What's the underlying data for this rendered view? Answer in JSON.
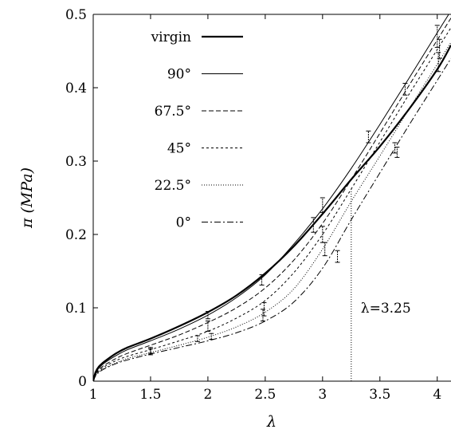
{
  "chart_data": {
    "type": "line",
    "xlabel": "λ",
    "ylabel": "π (MPa)",
    "xlim": [
      1,
      4.12
    ],
    "ylim": [
      0,
      0.5
    ],
    "x_ticks": [
      {
        "v": 1,
        "label": "1"
      },
      {
        "v": 1.5,
        "label": "1.5"
      },
      {
        "v": 2,
        "label": "2"
      },
      {
        "v": 2.5,
        "label": "2.5"
      },
      {
        "v": 3,
        "label": "3"
      },
      {
        "v": 3.5,
        "label": "3.5"
      },
      {
        "v": 4,
        "label": "4"
      }
    ],
    "y_ticks": [
      {
        "v": 0,
        "label": "0"
      },
      {
        "v": 0.1,
        "label": "0.1"
      },
      {
        "v": 0.2,
        "label": "0.2"
      },
      {
        "v": 0.3,
        "label": "0.3"
      },
      {
        "v": 0.4,
        "label": "0.4"
      },
      {
        "v": 0.5,
        "label": "0.5"
      }
    ],
    "grid": false,
    "legend_position": "top-left",
    "series": [
      {
        "name": "virgin",
        "dash": "",
        "width": 2.2,
        "x": [
          1,
          1.02,
          1.05,
          1.1,
          1.2,
          1.3,
          1.5,
          1.75,
          2,
          2.25,
          2.5,
          2.75,
          3,
          3.25,
          3.5,
          3.75,
          4,
          4.12
        ],
        "y": [
          0,
          0.012,
          0.02,
          0.027,
          0.038,
          0.046,
          0.058,
          0.075,
          0.094,
          0.117,
          0.147,
          0.184,
          0.228,
          0.275,
          0.32,
          0.37,
          0.425,
          0.458
        ],
        "error_bars": []
      },
      {
        "name": "90°",
        "dash": "",
        "width": 1,
        "x": [
          1,
          1.02,
          1.05,
          1.1,
          1.2,
          1.3,
          1.5,
          1.75,
          2,
          2.25,
          2.5,
          2.75,
          3,
          3.25,
          3.5,
          3.75,
          4,
          4.12
        ],
        "y": [
          0,
          0.01,
          0.018,
          0.025,
          0.035,
          0.043,
          0.055,
          0.071,
          0.09,
          0.114,
          0.145,
          0.187,
          0.235,
          0.29,
          0.35,
          0.412,
          0.475,
          0.505
        ],
        "error_bars": []
      },
      {
        "name": "67.5°",
        "dash": "6,3",
        "width": 1,
        "x": [
          1,
          1.02,
          1.05,
          1.1,
          1.2,
          1.3,
          1.5,
          1.75,
          2,
          2.25,
          2.5,
          2.75,
          3,
          3.25,
          3.5,
          3.75,
          4,
          4.12
        ],
        "y": [
          0,
          0.009,
          0.016,
          0.022,
          0.031,
          0.038,
          0.049,
          0.063,
          0.08,
          0.1,
          0.127,
          0.165,
          0.215,
          0.275,
          0.338,
          0.402,
          0.465,
          0.495
        ],
        "error_bars": [
          {
            "x": 2.0,
            "y": 0.09,
            "e": 0.005
          },
          {
            "x": 2.47,
            "y": 0.138,
            "e": 0.007
          },
          {
            "x": 3.0,
            "y": 0.24,
            "e": 0.01
          },
          {
            "x": 3.4,
            "y": 0.333,
            "e": 0.008
          },
          {
            "x": 3.72,
            "y": 0.398,
            "e": 0.008
          },
          {
            "x": 4.0,
            "y": 0.47,
            "e": 0.015
          }
        ]
      },
      {
        "name": "45°",
        "dash": "3,3",
        "width": 1,
        "x": [
          1,
          1.02,
          1.05,
          1.1,
          1.2,
          1.3,
          1.5,
          1.75,
          2,
          2.25,
          2.5,
          2.75,
          3,
          3.25,
          3.5,
          3.75,
          4,
          4.12
        ],
        "y": [
          0,
          0.008,
          0.014,
          0.02,
          0.028,
          0.034,
          0.043,
          0.055,
          0.068,
          0.086,
          0.11,
          0.148,
          0.2,
          0.262,
          0.326,
          0.39,
          0.452,
          0.482
        ],
        "error_bars": [
          {
            "x": 2.0,
            "y": 0.075,
            "e": 0.007
          },
          {
            "x": 2.49,
            "y": 0.098,
            "e": 0.009
          },
          {
            "x": 2.92,
            "y": 0.213,
            "e": 0.01
          },
          {
            "x": 3.0,
            "y": 0.2,
            "e": 0.011
          },
          {
            "x": 4.02,
            "y": 0.453,
            "e": 0.013
          }
        ]
      },
      {
        "name": "22.5°",
        "dash": "1,2",
        "width": 1,
        "x": [
          1,
          1.02,
          1.05,
          1.1,
          1.2,
          1.3,
          1.5,
          1.75,
          2,
          2.25,
          2.5,
          2.75,
          3,
          3.25,
          3.5,
          3.75,
          4,
          4.12
        ],
        "y": [
          0,
          0.008,
          0.013,
          0.018,
          0.025,
          0.031,
          0.039,
          0.049,
          0.06,
          0.074,
          0.094,
          0.126,
          0.18,
          0.245,
          0.307,
          0.37,
          0.432,
          0.462
        ],
        "error_bars": [
          {
            "x": 1.5,
            "y": 0.042,
            "e": 0.004
          },
          {
            "x": 1.91,
            "y": 0.058,
            "e": 0.004
          },
          {
            "x": 3.02,
            "y": 0.18,
            "e": 0.009
          },
          {
            "x": 4.01,
            "y": 0.435,
            "e": 0.013
          }
        ]
      },
      {
        "name": "0°",
        "dash": "8,3,2,3",
        "width": 1,
        "x": [
          1,
          1.02,
          1.05,
          1.1,
          1.2,
          1.3,
          1.5,
          1.75,
          2,
          2.25,
          2.5,
          2.75,
          3,
          3.25,
          3.5,
          3.75,
          4,
          4.12
        ],
        "y": [
          0,
          0.007,
          0.012,
          0.017,
          0.024,
          0.029,
          0.037,
          0.046,
          0.055,
          0.066,
          0.082,
          0.108,
          0.154,
          0.22,
          0.284,
          0.348,
          0.41,
          0.44
        ],
        "error_bars": [
          {
            "x": 1.5,
            "y": 0.04,
            "e": 0.004
          },
          {
            "x": 2.03,
            "y": 0.061,
            "e": 0.004
          },
          {
            "x": 2.48,
            "y": 0.09,
            "e": 0.008
          },
          {
            "x": 3.13,
            "y": 0.17,
            "e": 0.008
          },
          {
            "x": 3.63,
            "y": 0.318,
            "e": 0.007
          },
          {
            "x": 3.65,
            "y": 0.312,
            "e": 0.007
          }
        ]
      }
    ],
    "annotations": [
      {
        "text": "λ=3.25",
        "x": 3.25,
        "y": 0.1,
        "ref_x": 3.25
      }
    ]
  }
}
